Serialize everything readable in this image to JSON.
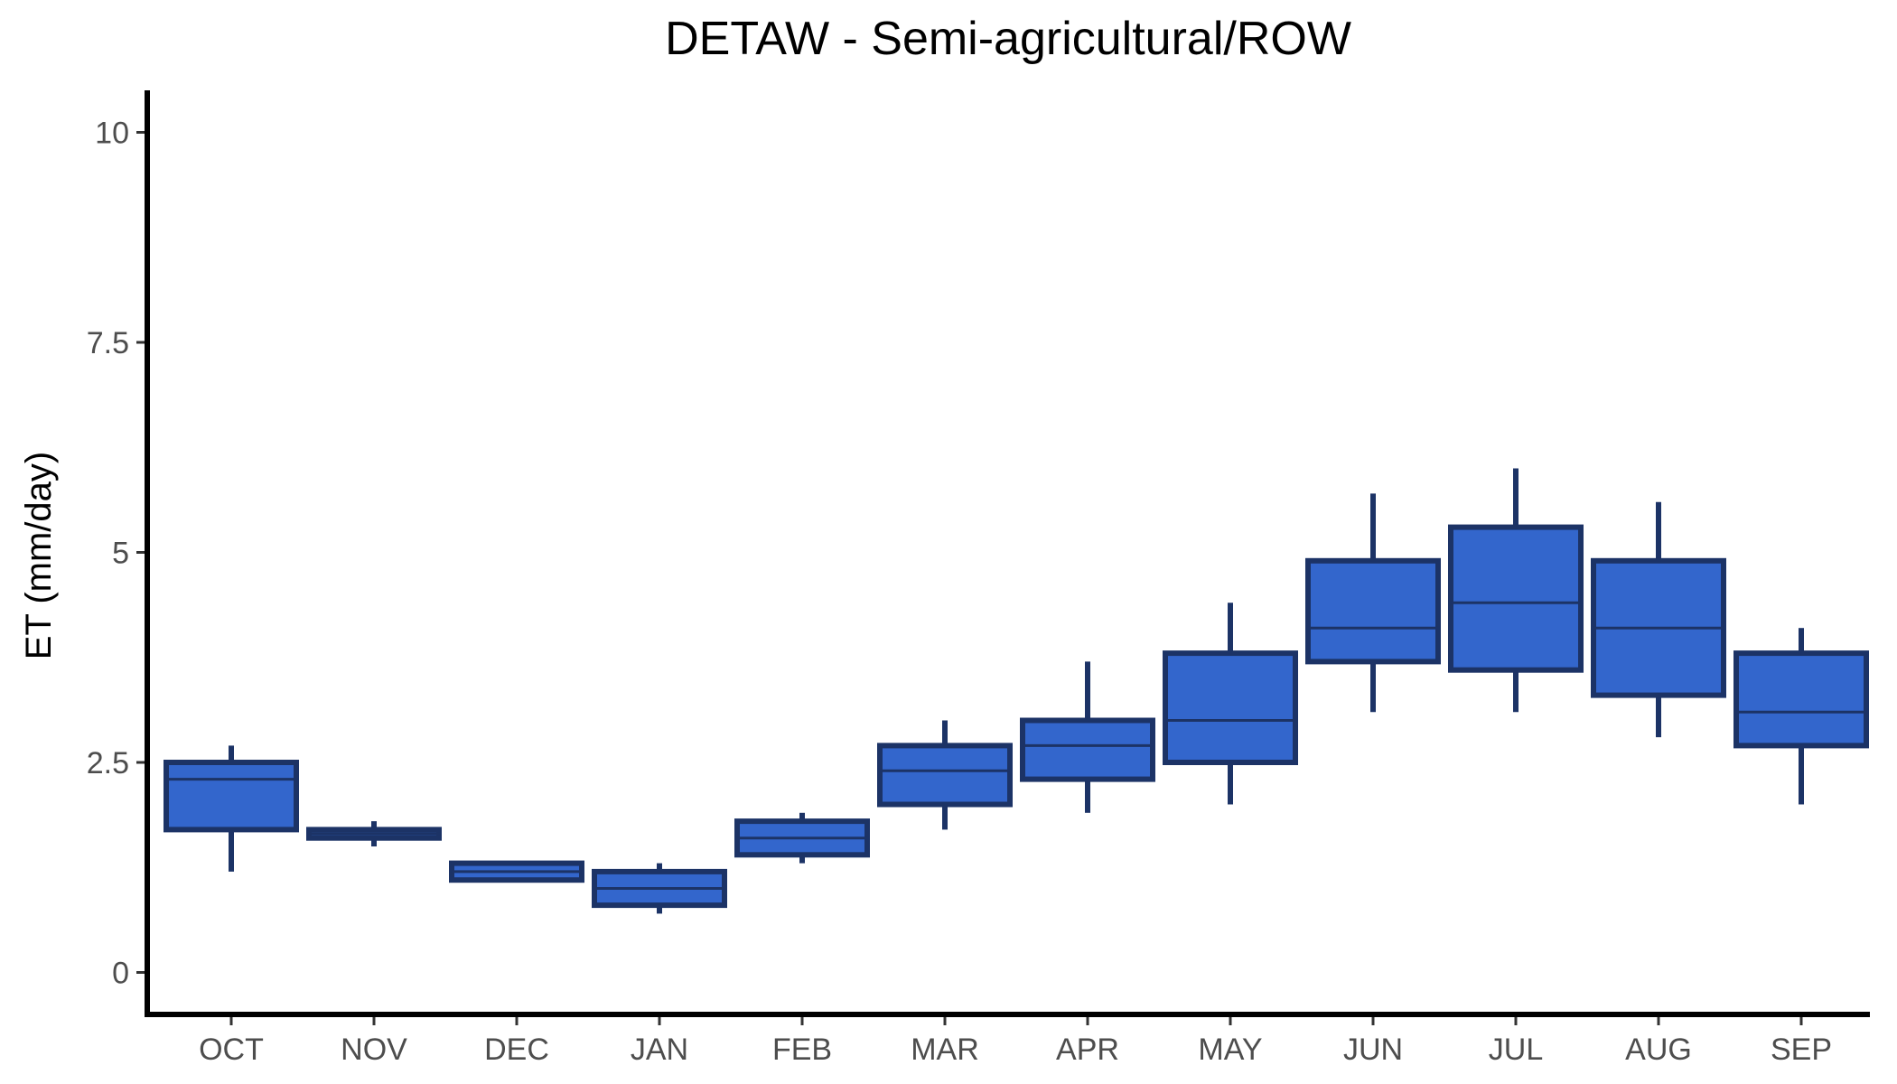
{
  "chart_data": {
    "type": "boxplot",
    "title": "DETAW - Semi-agricultural/ROW",
    "xlabel": "",
    "ylabel": "ET (mm/day)",
    "ylim": [
      -0.5,
      10.5
    ],
    "yticks": [
      0,
      2.5,
      5,
      7.5,
      10
    ],
    "ytick_labels": [
      "0",
      "2.5",
      "5",
      "7.5",
      "10"
    ],
    "grid": false,
    "legend": "none",
    "colors": {
      "box_fill": "#3366cc",
      "box_outline": "#1c3366",
      "axis": "#000000",
      "tick_label": "#4d4d4d"
    },
    "categories": [
      "OCT",
      "NOV",
      "DEC",
      "JAN",
      "FEB",
      "MAR",
      "APR",
      "MAY",
      "JUN",
      "JUL",
      "AUG",
      "SEP"
    ],
    "boxes": [
      {
        "min": 1.2,
        "q1": 1.7,
        "median": 2.3,
        "q3": 2.5,
        "max": 2.7
      },
      {
        "min": 1.5,
        "q1": 1.6,
        "median": 1.65,
        "q3": 1.7,
        "max": 1.8
      },
      {
        "min": 1.1,
        "q1": 1.1,
        "median": 1.2,
        "q3": 1.3,
        "max": 1.3
      },
      {
        "min": 0.7,
        "q1": 0.8,
        "median": 1.0,
        "q3": 1.2,
        "max": 1.3
      },
      {
        "min": 1.3,
        "q1": 1.4,
        "median": 1.6,
        "q3": 1.8,
        "max": 1.9
      },
      {
        "min": 1.7,
        "q1": 2.0,
        "median": 2.4,
        "q3": 2.7,
        "max": 3.0
      },
      {
        "min": 1.9,
        "q1": 2.3,
        "median": 2.7,
        "q3": 3.0,
        "max": 3.7
      },
      {
        "min": 2.0,
        "q1": 2.5,
        "median": 3.0,
        "q3": 3.8,
        "max": 4.4
      },
      {
        "min": 3.1,
        "q1": 3.7,
        "median": 4.1,
        "q3": 4.9,
        "max": 5.7
      },
      {
        "min": 3.1,
        "q1": 3.6,
        "median": 4.4,
        "q3": 5.3,
        "max": 6.0
      },
      {
        "min": 2.8,
        "q1": 3.3,
        "median": 4.1,
        "q3": 4.9,
        "max": 5.6
      },
      {
        "min": 2.0,
        "q1": 2.7,
        "median": 3.1,
        "q3": 3.8,
        "max": 4.1
      }
    ]
  }
}
